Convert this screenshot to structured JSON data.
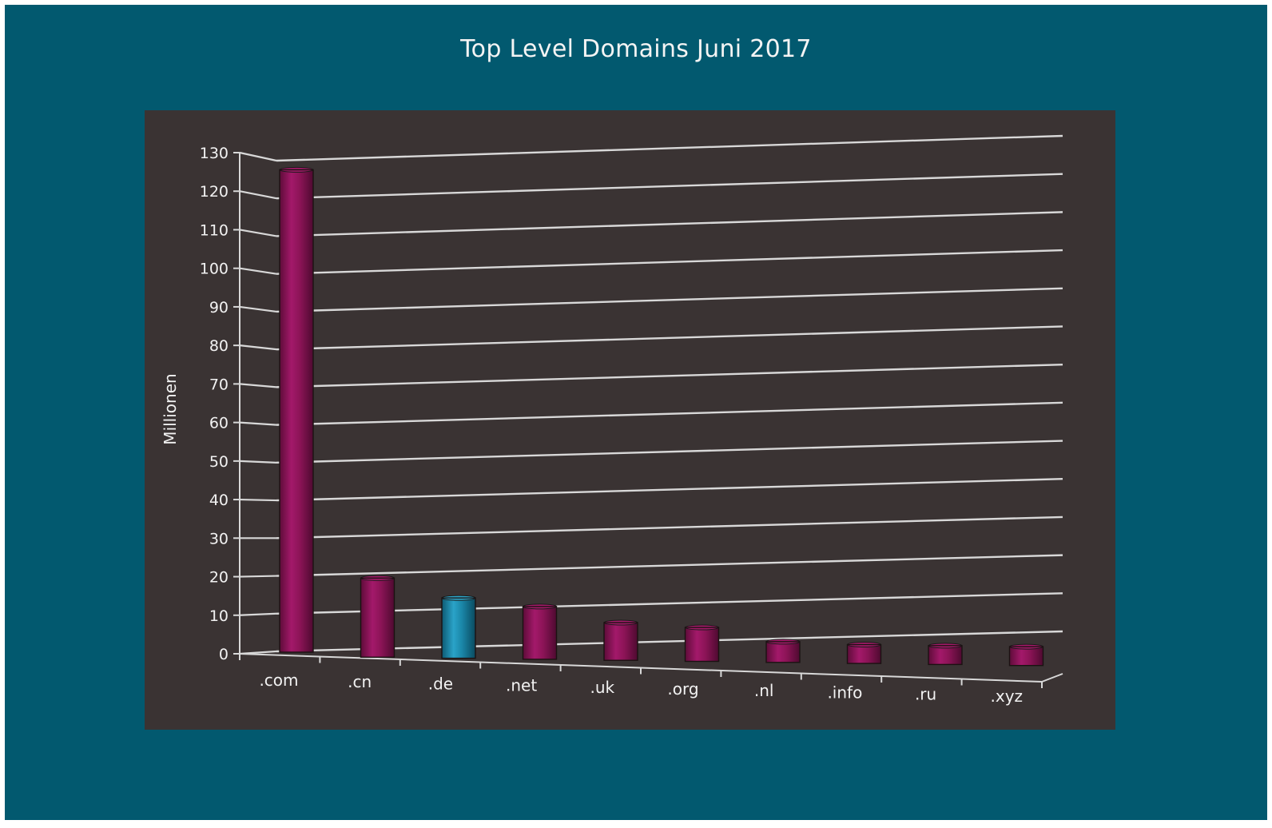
{
  "chart_data": {
    "type": "bar",
    "title": "Top Level Domains Juni 2017",
    "ylabel": "Millionen",
    "xlabel": "",
    "ylim": [
      0,
      130
    ],
    "yticks": [
      0,
      10,
      20,
      30,
      40,
      50,
      60,
      70,
      80,
      90,
      100,
      110,
      120,
      130
    ],
    "categories": [
      ".com",
      ".cn",
      ".de",
      ".net",
      ".uk",
      ".org",
      ".nl",
      ".info",
      ".ru",
      ".xyz"
    ],
    "values": [
      128,
      21,
      16,
      14,
      10,
      9,
      5.5,
      5,
      5,
      5
    ],
    "highlight_category": ".de",
    "colors": {
      "bar": "#8a1455",
      "bar_highlight": "#1a86a8",
      "plot_background": "#3a3333",
      "frame": "#02596f",
      "gridline": "#d8d8d8",
      "text": "#f2f2f2"
    },
    "grid": true,
    "legend": "none"
  }
}
